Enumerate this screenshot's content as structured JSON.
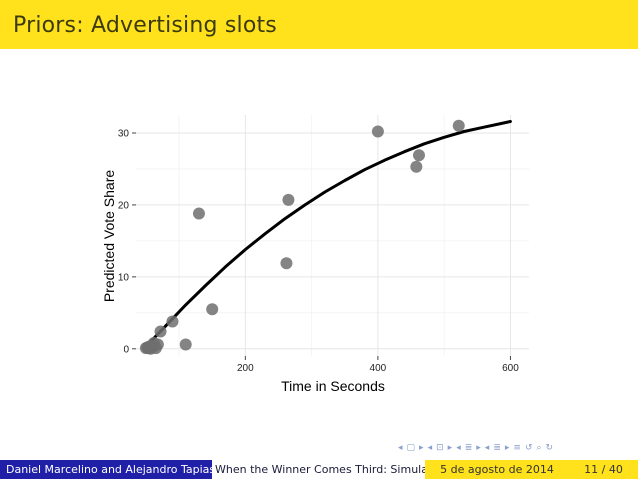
{
  "slide": {
    "title": "Priors: Advertising slots"
  },
  "footer": {
    "authors": "Daniel Marcelino and Alejandro Tapias",
    "short_title": "When the Winner Comes Third: Simula",
    "date": "5 de agosto de 2014",
    "page": "11 / 40"
  },
  "nav": {
    "icons": [
      "frame-prev-icon",
      "frame-next-icon",
      "subsection-prev-icon",
      "subsection-next-icon",
      "section-prev-icon",
      "section-next-icon",
      "align-icon",
      "search-icon"
    ]
  },
  "colors": {
    "accent_yellow": "#ffe21b",
    "footer_blue": "#1f1fa8",
    "point_gray": "#6f6f6f"
  },
  "chart_data": {
    "type": "scatter",
    "xlabel": "Time in Seconds",
    "ylabel": "Predicted Vote Share",
    "xlim": [
      35,
      628
    ],
    "ylim": [
      -1,
      32.5
    ],
    "x_ticks": [
      200,
      400,
      600
    ],
    "y_ticks": [
      0,
      10,
      20,
      30
    ],
    "grid": true,
    "points": [
      {
        "x": 50,
        "y": 0.1
      },
      {
        "x": 52,
        "y": 0.2
      },
      {
        "x": 54,
        "y": 0.1
      },
      {
        "x": 55,
        "y": 0.3
      },
      {
        "x": 57,
        "y": 0.0
      },
      {
        "x": 58,
        "y": 0.4
      },
      {
        "x": 60,
        "y": 0.2
      },
      {
        "x": 62,
        "y": 0.8
      },
      {
        "x": 65,
        "y": 0.1
      },
      {
        "x": 68,
        "y": 0.6
      },
      {
        "x": 72,
        "y": 2.4
      },
      {
        "x": 90,
        "y": 3.8
      },
      {
        "x": 110,
        "y": 0.6
      },
      {
        "x": 130,
        "y": 18.8
      },
      {
        "x": 150,
        "y": 5.5
      },
      {
        "x": 262,
        "y": 11.9
      },
      {
        "x": 265,
        "y": 20.7
      },
      {
        "x": 400,
        "y": 30.2
      },
      {
        "x": 458,
        "y": 25.3
      },
      {
        "x": 462,
        "y": 26.9
      },
      {
        "x": 522,
        "y": 31.0
      }
    ],
    "fit_line": {
      "x": [
        50,
        80,
        110,
        140,
        170,
        200,
        230,
        260,
        290,
        320,
        350,
        380,
        410,
        440,
        470,
        500,
        530,
        560,
        600
      ],
      "y": [
        0.3,
        3.2,
        6.1,
        8.8,
        11.4,
        13.8,
        16.0,
        18.1,
        20.0,
        21.8,
        23.4,
        24.9,
        26.2,
        27.4,
        28.5,
        29.4,
        30.2,
        30.8,
        31.6
      ]
    }
  }
}
